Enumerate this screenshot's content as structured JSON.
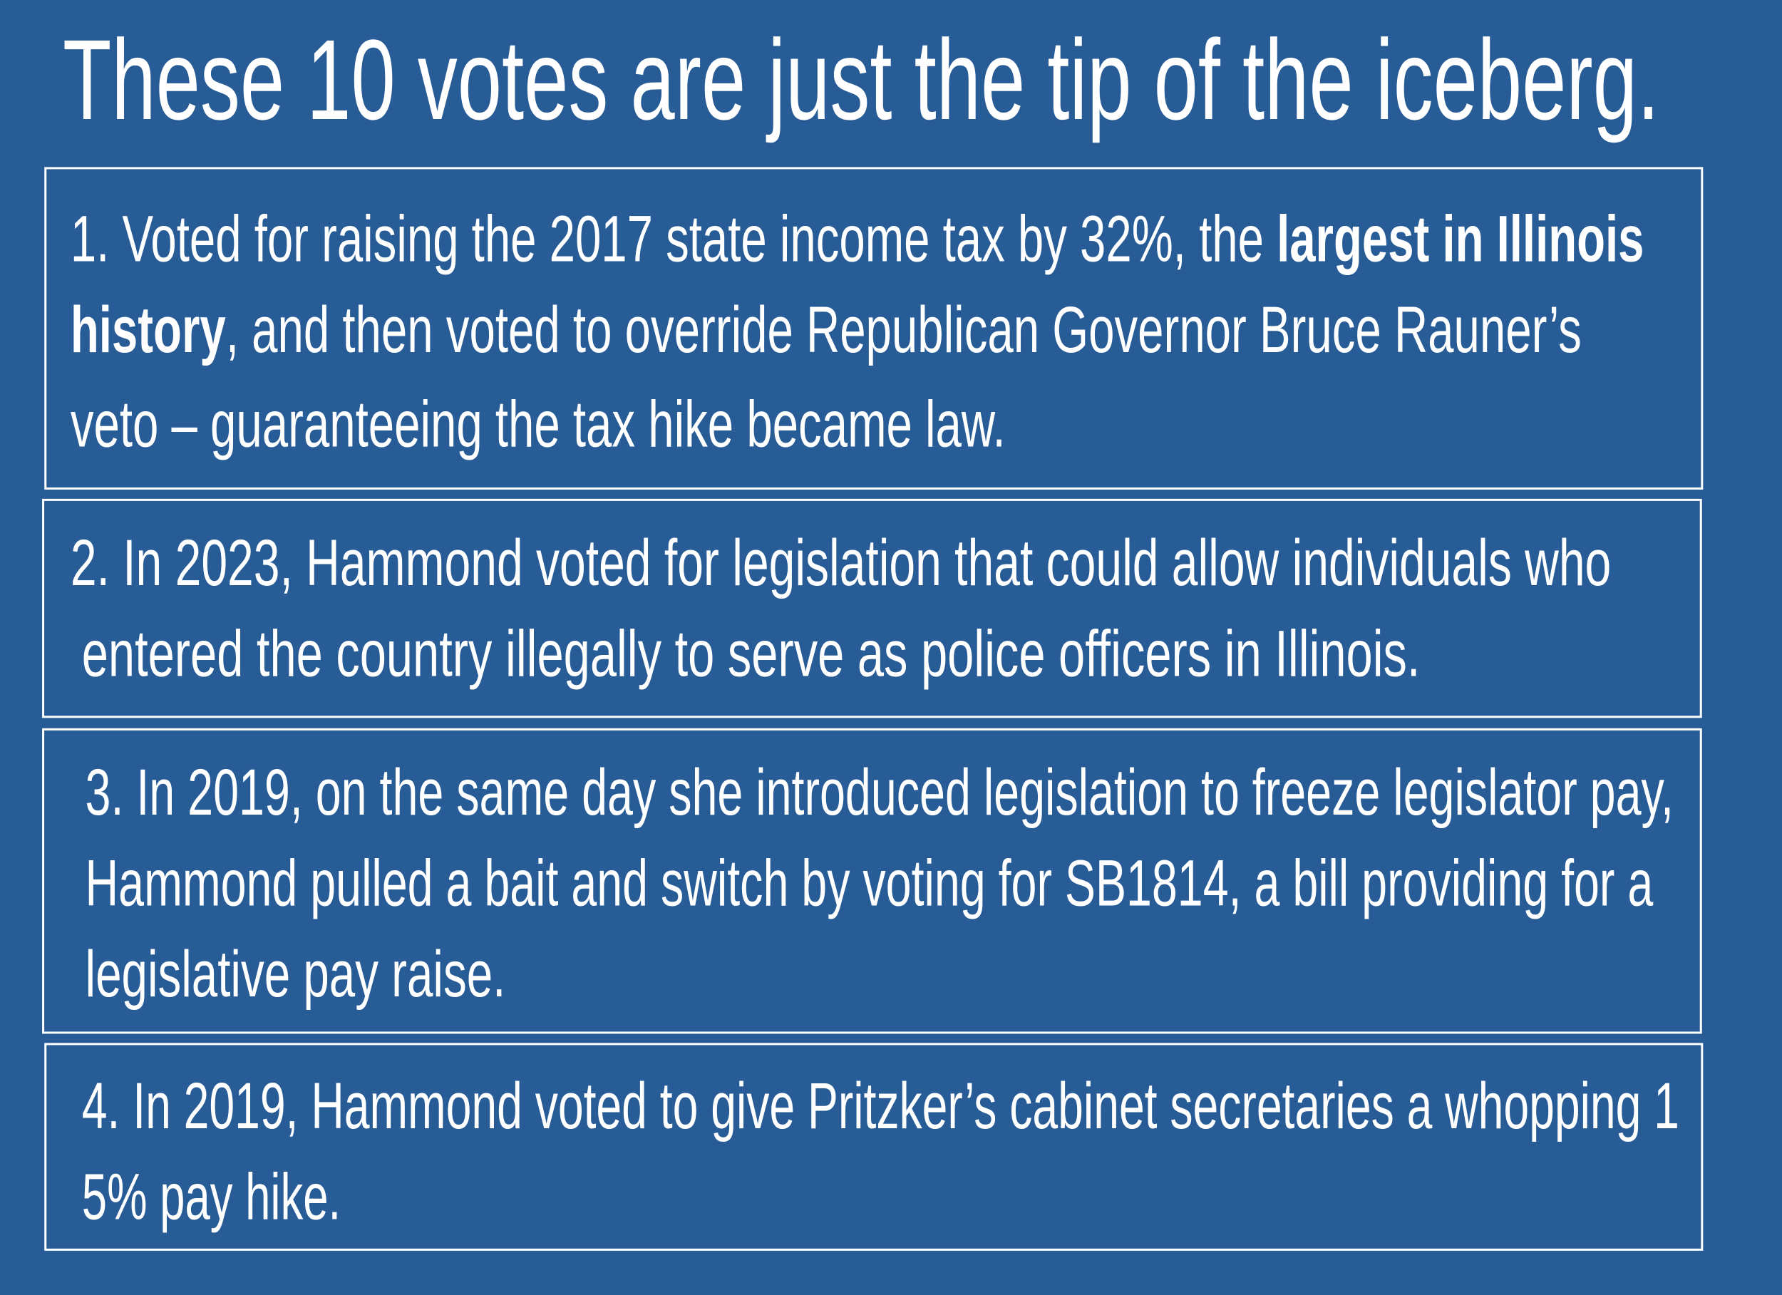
{
  "header": {
    "title": "These 10 votes are just the tip of the iceberg."
  },
  "items": [
    {
      "lines": [
        [
          {
            "text": "1. Voted for raising the 2017 state income tax by 32%, the "
          },
          {
            "text": "largest in Illinois",
            "bold": true
          }
        ],
        [
          {
            "text": "history",
            "bold": true
          },
          {
            "text": ", and then voted to override Republican Governor Bruce Rauner’s"
          }
        ],
        [
          {
            "text": "veto – guaranteeing the tax hike became law."
          }
        ]
      ]
    },
    {
      "lines": [
        [
          {
            "text": "2. In 2023, Hammond voted for legislation that could allow individuals who"
          }
        ],
        [
          {
            "text": "entered the country illegally to serve as police officers in Illinois."
          }
        ]
      ]
    },
    {
      "lines": [
        [
          {
            "text": "3. In 2019, on the same day she introduced legislation to freeze legislator pay,"
          }
        ],
        [
          {
            "text": "Hammond pulled a bait and switch by voting for SB1814, a bill providing for a"
          }
        ],
        [
          {
            "text": "legislative pay raise."
          }
        ]
      ]
    },
    {
      "lines": [
        [
          {
            "text": "4. In 2019, Hammond voted to give Pritzker’s cabinet secretaries a whopping 1"
          }
        ],
        [
          {
            "text": "5% pay hike."
          }
        ]
      ]
    }
  ]
}
